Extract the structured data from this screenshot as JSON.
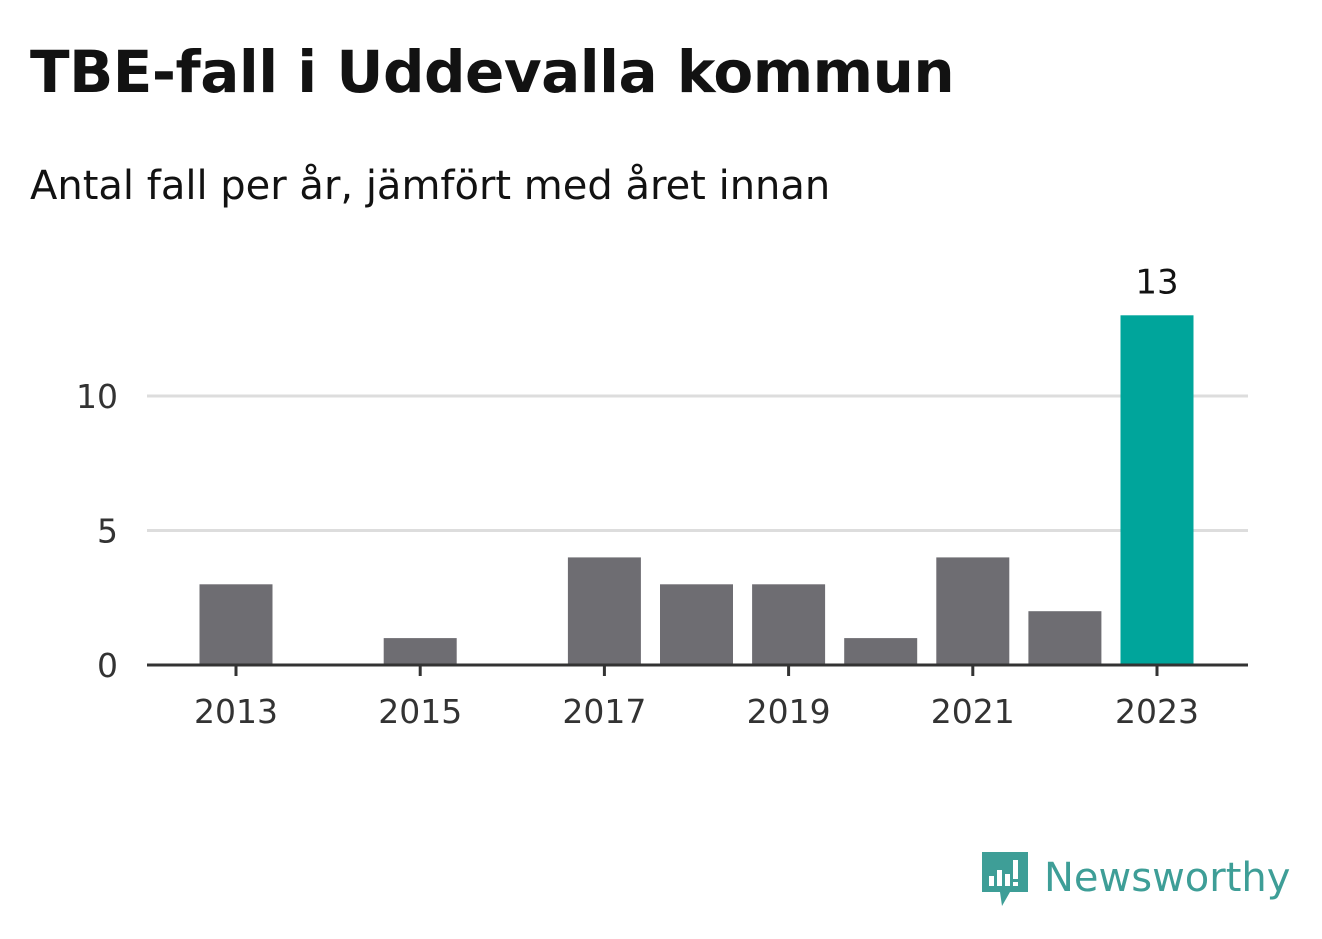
{
  "header": {
    "title": "TBE-fall i Uddevalla kommun",
    "subtitle": "Antal fall per år, jämfört med året innan"
  },
  "brand": {
    "name": "Newsworthy",
    "icon": "newsworthy-logo-icon",
    "color": "#3e9e97"
  },
  "colors": {
    "bar_default": "#6e6d72",
    "bar_highlight": "#00a59b",
    "grid": "#dddddd",
    "axis": "#333333",
    "tick_text": "#333333",
    "label_text": "#121212"
  },
  "chart_data": {
    "type": "bar",
    "categories": [
      "2013",
      "2014",
      "2015",
      "2016",
      "2017",
      "2018",
      "2019",
      "2020",
      "2021",
      "2022",
      "2023"
    ],
    "values": [
      3,
      0,
      1,
      0,
      4,
      3,
      3,
      1,
      4,
      2,
      13
    ],
    "highlight_index": 10,
    "data_labels": [
      {
        "index": 10,
        "text": "13"
      }
    ],
    "x_tick_labels": [
      "2013",
      "2015",
      "2017",
      "2019",
      "2021",
      "2023"
    ],
    "y_ticks": [
      0,
      5,
      10
    ],
    "ylim": [
      0,
      13
    ],
    "grid": true,
    "xlabel": "",
    "ylabel": ""
  }
}
